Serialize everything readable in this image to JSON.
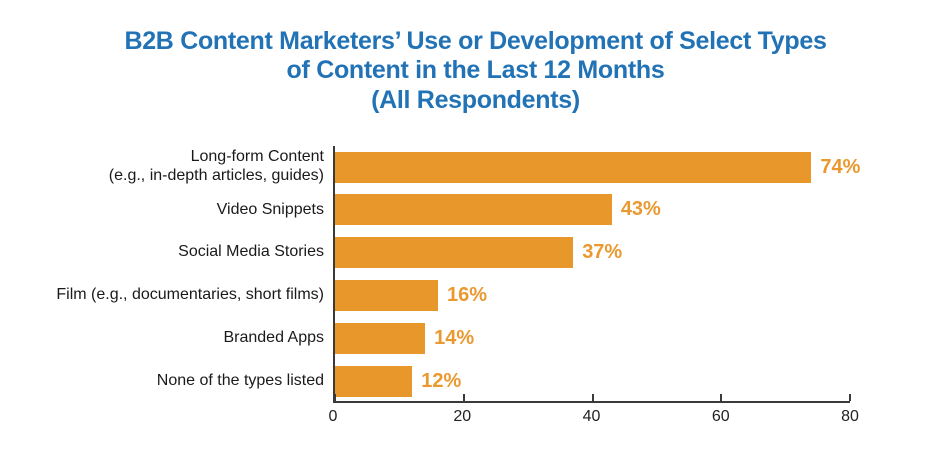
{
  "title": {
    "line1": "B2B Content Marketers’ Use or Development of Select Types",
    "line2": "of Content in the Last 12 Months",
    "line3": "(All Respondents)"
  },
  "colors": {
    "title_text": "#2272B6",
    "bar": "#E8982A",
    "value_label": "#EA9930",
    "axis": "#3A3A3A",
    "category_text": "#1A1A1A"
  },
  "chart_data": {
    "type": "bar",
    "orientation": "horizontal",
    "title": "B2B Content Marketers’ Use or Development of Select Types of Content in the Last 12 Months (All Respondents)",
    "categories": [
      "Long-form Content\n(e.g., in-depth articles, guides)",
      "Video Snippets",
      "Social Media Stories",
      "Film (e.g., documentaries, short films)",
      "Branded Apps",
      "None of the types listed"
    ],
    "values": [
      74,
      43,
      37,
      16,
      14,
      12
    ],
    "value_labels": [
      "74%",
      "43%",
      "37%",
      "16%",
      "14%",
      "12%"
    ],
    "xlabel": "",
    "ylabel": "",
    "xlim": [
      0,
      80
    ],
    "xticks": [
      0,
      20,
      40,
      60,
      80
    ],
    "grid": false,
    "legend": null
  }
}
